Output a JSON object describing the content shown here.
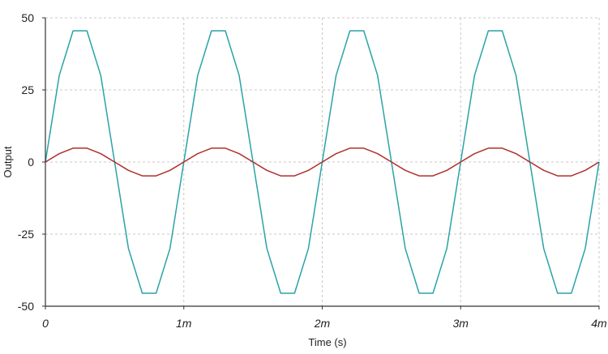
{
  "chart_data": {
    "type": "line",
    "xlabel": "Time (s)",
    "ylabel": "Output",
    "xlim": [
      0,
      0.004
    ],
    "ylim": [
      -50,
      50
    ],
    "x_ticks": [
      {
        "value": 0,
        "label": "0"
      },
      {
        "value": 0.001,
        "label": "1m"
      },
      {
        "value": 0.002,
        "label": "2m"
      },
      {
        "value": 0.003,
        "label": "3m"
      },
      {
        "value": 0.004,
        "label": "4m"
      }
    ],
    "y_ticks": [
      {
        "value": 50,
        "label": "50"
      },
      {
        "value": 25,
        "label": "25"
      },
      {
        "value": 0,
        "label": "0"
      },
      {
        "value": -25,
        "label": "-25"
      },
      {
        "value": -50,
        "label": "-50"
      }
    ],
    "grid": true,
    "grid_style": "dashed",
    "series": [
      {
        "color": "#2aa3a6",
        "x": [
          0,
          0.0001,
          0.0002,
          0.0003,
          0.0004,
          0.0005,
          0.0006,
          0.0007,
          0.0008,
          0.0009,
          0.001,
          0.0011,
          0.0012,
          0.0013,
          0.0014,
          0.0015,
          0.0016,
          0.0017,
          0.0018,
          0.0019,
          0.002,
          0.0021,
          0.0022,
          0.0023,
          0.0024,
          0.0025,
          0.0026,
          0.0027,
          0.0028,
          0.0029,
          0.003,
          0.0031,
          0.0032,
          0.0033,
          0.0034,
          0.0035,
          0.0036,
          0.0037,
          0.0038,
          0.0039,
          0.004
        ],
        "y": [
          0,
          30,
          45.5,
          45.5,
          30,
          0,
          -30,
          -45.5,
          -45.5,
          -30,
          0,
          30,
          45.5,
          45.5,
          30,
          0,
          -30,
          -45.5,
          -45.5,
          -30,
          0,
          30,
          45.5,
          45.5,
          30,
          0,
          -30,
          -45.5,
          -45.5,
          -30,
          0,
          30,
          45.5,
          45.5,
          30,
          0,
          -30,
          -45.5,
          -45.5,
          -30,
          0
        ]
      },
      {
        "color": "#b0302c",
        "x": [
          0,
          0.0001,
          0.0002,
          0.0003,
          0.0004,
          0.0005,
          0.0006,
          0.0007,
          0.0008,
          0.0009,
          0.001,
          0.0011,
          0.0012,
          0.0013,
          0.0014,
          0.0015,
          0.0016,
          0.0017,
          0.0018,
          0.0019,
          0.002,
          0.0021,
          0.0022,
          0.0023,
          0.0024,
          0.0025,
          0.0026,
          0.0027,
          0.0028,
          0.0029,
          0.003,
          0.0031,
          0.0032,
          0.0033,
          0.0034,
          0.0035,
          0.0036,
          0.0037,
          0.0038,
          0.0039,
          0.004
        ],
        "y": [
          0,
          2.9,
          4.8,
          4.8,
          2.9,
          0,
          -2.9,
          -4.8,
          -4.8,
          -2.9,
          0,
          2.9,
          4.8,
          4.8,
          2.9,
          0,
          -2.9,
          -4.8,
          -4.8,
          -2.9,
          0,
          2.9,
          4.8,
          4.8,
          2.9,
          0,
          -2.9,
          -4.8,
          -4.8,
          -2.9,
          0,
          2.9,
          4.8,
          4.8,
          2.9,
          0,
          -2.9,
          -4.8,
          -4.8,
          -2.9,
          0
        ]
      }
    ]
  }
}
